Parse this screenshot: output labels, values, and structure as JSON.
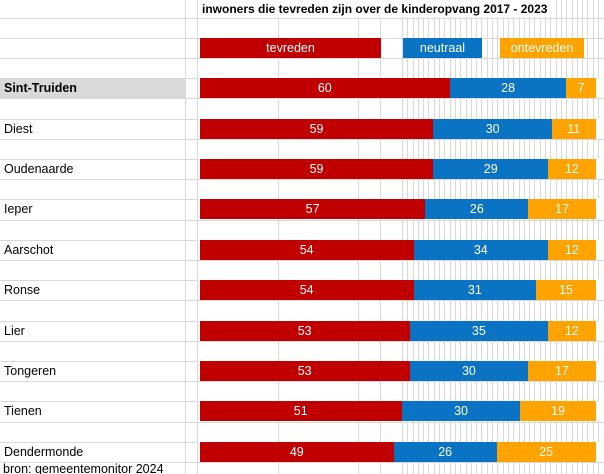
{
  "title": "inwoners die tevreden zijn over de kinderopvang 2017 - 2023",
  "source_note": "bron: gemeentemonitor 2024",
  "legend": [
    {
      "label": "tevreden",
      "color": "#c00000"
    },
    {
      "label": "neutraal",
      "color": "#0a73c3"
    },
    {
      "label": "ontevreden",
      "color": "#ffa300"
    }
  ],
  "colors": {
    "tevreden": "#c00000",
    "neutraal": "#0a73c3",
    "ontevreden": "#ffa300",
    "highlight_cell": "#d9d9d9",
    "gridline": "#d9d9d9",
    "bar_text": "#ffffff"
  },
  "highlight": {
    "category": "Sint-Truiden"
  },
  "chart_data": {
    "type": "bar",
    "orientation": "horizontal",
    "stacked": true,
    "percent_of_row_total": true,
    "title": "inwoners die tevreden zijn over de kinderopvang 2017 - 2023",
    "legend_position": "top",
    "value_labels": true,
    "grid": "excel-worksheet-background",
    "categories": [
      "Sint-Truiden",
      "Diest",
      "Oudenaarde",
      "Ieper",
      "Aarschot",
      "Ronse",
      "Lier",
      "Tongeren",
      "Tienen",
      "Dendermonde"
    ],
    "series": [
      {
        "name": "tevreden",
        "color": "#c00000",
        "values": [
          60,
          59,
          59,
          57,
          54,
          54,
          53,
          53,
          51,
          49
        ]
      },
      {
        "name": "neutraal",
        "color": "#0a73c3",
        "values": [
          28,
          30,
          29,
          26,
          34,
          31,
          35,
          30,
          30,
          26
        ]
      },
      {
        "name": "ontevreden",
        "color": "#ffa300",
        "values": [
          7,
          11,
          12,
          17,
          12,
          15,
          12,
          17,
          19,
          25
        ]
      }
    ]
  }
}
